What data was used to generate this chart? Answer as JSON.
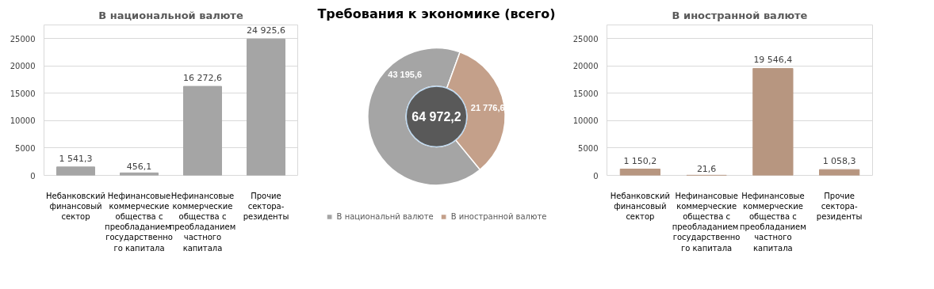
{
  "chart_data": [
    {
      "type": "bar",
      "title": "В национальной валюте",
      "categories": [
        "Небанковский финансовый сектор",
        "Нефинансовые коммерческие общества с преобладанием государственного капитала",
        "Нефинансовые коммерческие общества с преобладанием частного капитала",
        "Прочие сектора-резиденты"
      ],
      "values": [
        1541.3,
        456.1,
        16272.6,
        24925.6
      ],
      "value_labels": [
        "1 541,3",
        "456,1",
        "16 272,6",
        "24 925,6"
      ],
      "color": "#a5a5a5",
      "ylim": [
        0,
        27500
      ],
      "yticks": [
        0,
        5000,
        10000,
        15000,
        20000,
        25000
      ],
      "grid": "y",
      "legend": false
    },
    {
      "type": "donut",
      "title": "Требования к экономике (всего)",
      "categories": [
        "В национальнй валюте",
        "В иностранной валюте"
      ],
      "values": [
        43195.6,
        21776.6
      ],
      "value_labels": [
        "43 195,6",
        "21 776,6"
      ],
      "colors": [
        "#a5a5a5",
        "#c4a08a"
      ],
      "annotations": [
        "64 972,2"
      ],
      "legend": "bottom"
    },
    {
      "type": "bar",
      "title": "В иностранной валюте",
      "categories": [
        "Небанковский финансовый сектор",
        "Нефинансовые коммерческие общества с преобладанием государственного капитала",
        "Нефинансовые коммерческие общества с преобладанием частного капитала",
        "Прочие сектора-резиденты"
      ],
      "values": [
        1150.2,
        21.6,
        19546.4,
        1058.3
      ],
      "value_labels": [
        "1 150,2",
        "21,6",
        "19 546,4",
        "1 058,3"
      ],
      "color": "#b79680",
      "ylim": [
        0,
        27500
      ],
      "yticks": [
        0,
        5000,
        10000,
        15000,
        20000,
        25000
      ],
      "grid": "y",
      "legend": false
    }
  ]
}
